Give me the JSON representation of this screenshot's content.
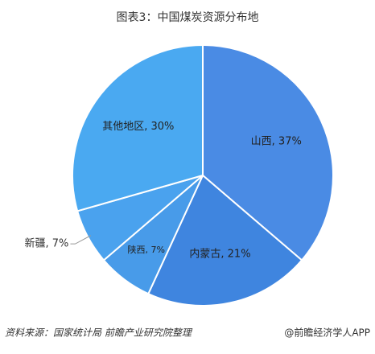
{
  "chart_data": {
    "type": "pie",
    "title": "图表3：中国煤炭资源分布地",
    "categories": [
      "山西",
      "内蒙古",
      "陕西",
      "新疆",
      "其他地区"
    ],
    "values": [
      37,
      21,
      7,
      7,
      30
    ],
    "value_labels": [
      "山西, 37%",
      "内蒙古, 21%",
      "陕西, 7%",
      "新疆, 7%",
      "其他地区, 30%"
    ],
    "colors": [
      "#4a8be4",
      "#3f85df",
      "#489be9",
      "#4aa2ee",
      "#4aa9f1"
    ],
    "source": "资料来源：国家统计局 前瞻产业研究院整理",
    "credit": "@前瞻经济学人APP"
  }
}
